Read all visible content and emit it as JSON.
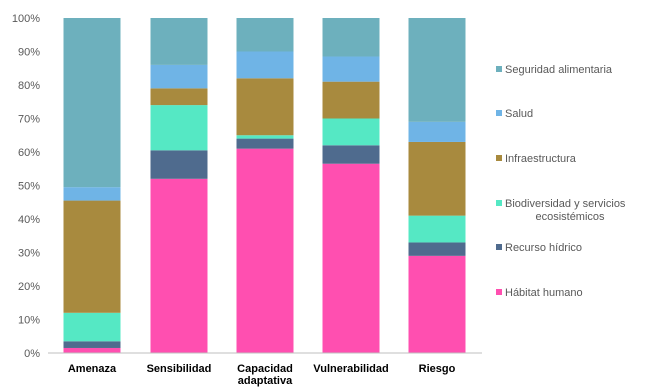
{
  "chart_data": {
    "type": "bar",
    "stacked": true,
    "percent": true,
    "ylim": [
      0,
      100
    ],
    "yticks": [
      "0%",
      "10%",
      "20%",
      "30%",
      "40%",
      "50%",
      "60%",
      "70%",
      "80%",
      "90%",
      "100%"
    ],
    "categories": [
      [
        "Amenaza"
      ],
      [
        "Sensibilidad"
      ],
      [
        "Capacidad",
        "adaptativa"
      ],
      [
        "Vulnerabilidad"
      ],
      [
        "Riesgo"
      ]
    ],
    "series": [
      {
        "name": "Hábitat humano",
        "color": "#ff4fb0",
        "values": [
          1.5,
          52,
          61,
          56.5,
          29
        ]
      },
      {
        "name": "Recurso hídrico",
        "color": "#4f6b8e",
        "values": [
          2,
          8.5,
          3,
          5.5,
          4
        ]
      },
      {
        "name": "Biodiversidad y servicios ecosistémicos",
        "legend_lines": [
          "Biodiversidad y servicios",
          "ecosistémicos"
        ],
        "color": "#55e8c4",
        "values": [
          8.5,
          13.5,
          1,
          8,
          8
        ]
      },
      {
        "name": "Infraestructura",
        "color": "#a88a3e",
        "values": [
          33.5,
          5,
          17,
          11,
          22
        ]
      },
      {
        "name": "Salud",
        "color": "#6fb4e6",
        "values": [
          4,
          7,
          8,
          7.5,
          6
        ]
      },
      {
        "name": "Seguridad alimentaria",
        "color": "#6db0bd",
        "values": [
          50.5,
          14,
          10,
          11.5,
          31
        ]
      }
    ],
    "grid": false,
    "legend_position": "right"
  }
}
